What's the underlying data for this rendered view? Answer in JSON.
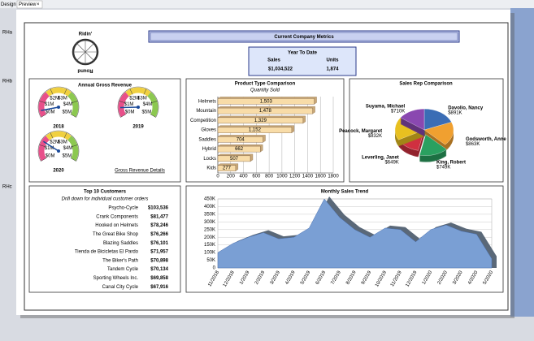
{
  "tabs": [
    "Design",
    "Preview"
  ],
  "row_labels": [
    "RHa",
    "RHb",
    "RHc"
  ],
  "logo": {
    "top": "Ridin'",
    "bottom": "Round"
  },
  "header": {
    "title": "Current Company Metrics"
  },
  "ytd": {
    "title": "Year To Date",
    "sales_label": "Sales",
    "units_label": "Units",
    "sales": "$1,034,522",
    "units": "1,874"
  },
  "charts": [
    {
      "type": "gauge",
      "title": "Annual Gross Revenue",
      "categories": [
        "2018",
        "2019",
        "2020"
      ],
      "values": [
        0.4,
        0.6,
        1.3
      ],
      "ylim": [
        0,
        5
      ],
      "yticks": [
        {
          "value": 0,
          "label": "$0M"
        },
        {
          "value": 1,
          "label": "$1M"
        },
        {
          "value": 2,
          "label": "$2M"
        },
        {
          "value": 3,
          "label": "$3M"
        },
        {
          "value": 4,
          "label": "$4M"
        },
        {
          "value": 5,
          "label": "$5M"
        }
      ],
      "colors": [
        "#e8508a",
        "#f0d040",
        "#8cc850"
      ],
      "link": "Gross Revenue Details"
    },
    {
      "type": "hbar",
      "title": "Product Type Comparison",
      "subtitle": "Quantity Sold",
      "categories": [
        "Helmets",
        "Mountain",
        "Competition",
        "Gloves",
        "Saddles",
        "Hybrid",
        "Locks",
        "Kids"
      ],
      "values": [
        1503,
        1478,
        1329,
        1152,
        704,
        662,
        507,
        277
      ],
      "value_labels": [
        "1,503",
        "1,478",
        "1,329",
        "1,152",
        "704",
        "662",
        "507",
        "277"
      ],
      "color": "#f8dca8",
      "xlim": [
        0,
        1800
      ],
      "xticks": [
        0,
        200,
        400,
        600,
        800,
        1000,
        1200,
        1400,
        1600,
        1800
      ],
      "grid": true
    },
    {
      "type": "pie",
      "title": "Sales Rep Comparison",
      "categories": [
        "Davolio, Nancy",
        "Godsworth, Anne",
        "King, Robert",
        "Leverling, Janet",
        "Peacock, Margaret",
        "Suyama, Michael"
      ],
      "values": [
        891,
        863,
        749,
        649,
        832,
        710
      ],
      "value_labels": [
        "$891K",
        "$863K",
        "$749K",
        "$649K",
        "$832K",
        "$710K"
      ],
      "colors": [
        "#3b6db5",
        "#f0a030",
        "#2aa060",
        "#d03040",
        "#e8c020",
        "#8a48b0"
      ]
    },
    {
      "type": "table",
      "title": "Top 10 Customers",
      "subtitle": "Drill down for individual customer orders",
      "rows": [
        [
          "Psycho-Cycle",
          "$103,536"
        ],
        [
          "Crank Components",
          "$81,477"
        ],
        [
          "Hooked on Helmets",
          "$78,246"
        ],
        [
          "The Great Bike Shop",
          "$76,266"
        ],
        [
          "Blazing Saddles",
          "$76,101"
        ],
        [
          "Tienda de Bicicletas El Pardo",
          "$71,957"
        ],
        [
          "The Biker's Path",
          "$70,898"
        ],
        [
          "Tandem Cycle",
          "$70,134"
        ],
        [
          "Sporting Wheels Inc.",
          "$69,858"
        ],
        [
          "Canal City Cycle",
          "$67,916"
        ]
      ]
    },
    {
      "type": "area",
      "title": "Monthly Sales Trend",
      "categories": [
        "11/2018",
        "12/2018",
        "1/2019",
        "2/2019",
        "3/2019",
        "4/2019",
        "5/2019",
        "6/2019",
        "7/2019",
        "8/2019",
        "9/2019",
        "10/2019",
        "11/2019",
        "12/2019",
        "1/2020",
        "2/2020",
        "3/2020",
        "4/2020",
        "5/2020"
      ],
      "values": [
        100000,
        160000,
        200000,
        230000,
        190000,
        200000,
        260000,
        450000,
        330000,
        250000,
        200000,
        260000,
        250000,
        170000,
        250000,
        280000,
        240000,
        220000,
        60000
      ],
      "color": "#7a9fd4",
      "ylim": [
        0,
        450000
      ],
      "yticks": [
        0,
        {
          "value": 50000,
          "label": "50K"
        },
        {
          "value": 100000,
          "label": "100K"
        },
        {
          "value": 150000,
          "label": "150K"
        },
        {
          "value": 200000,
          "label": "200K"
        },
        {
          "value": 250000,
          "label": "250K"
        },
        {
          "value": 300000,
          "label": "300K"
        },
        {
          "value": 350000,
          "label": "350K"
        },
        {
          "value": 400000,
          "label": "400K"
        },
        {
          "value": 450000,
          "label": "450K"
        }
      ],
      "grid": true
    }
  ]
}
